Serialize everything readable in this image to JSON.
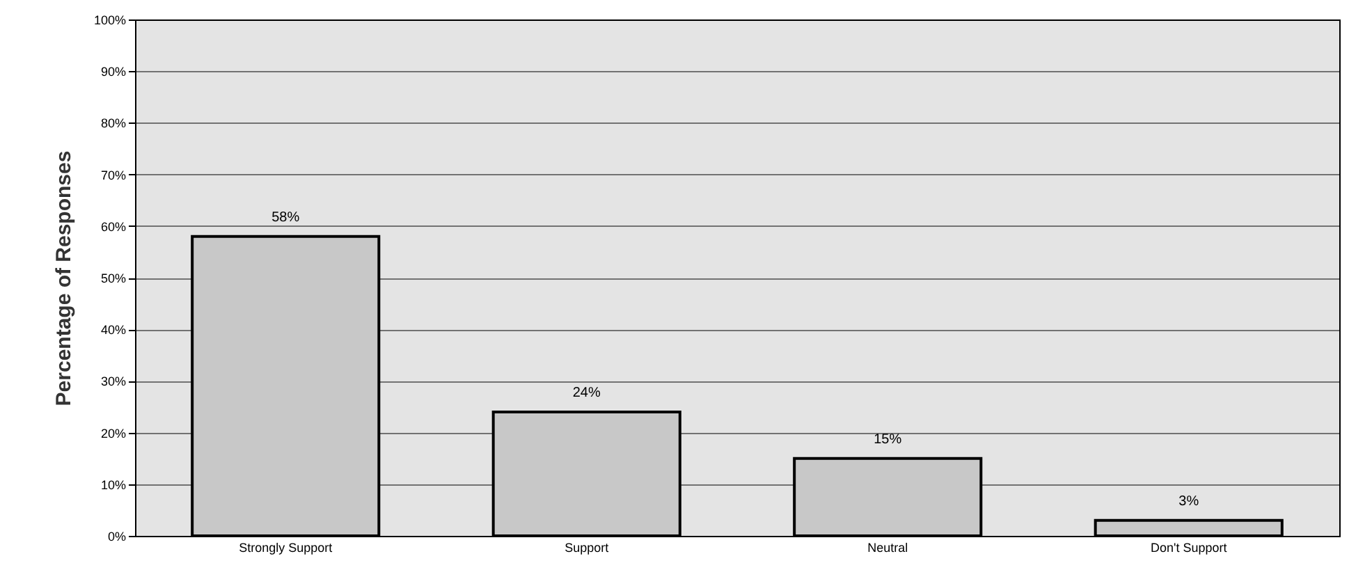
{
  "chart_data": {
    "type": "bar",
    "ylabel": "Percentage of Responses",
    "categories": [
      "Strongly Support",
      "Support",
      "Neutral",
      "Don't Support"
    ],
    "values": [
      58,
      24,
      15,
      3
    ],
    "value_labels": [
      "58%",
      "24%",
      "15%",
      "3%"
    ],
    "color": "#c8c8c8",
    "ylim": [
      0,
      100
    ],
    "yticks": [
      {
        "value": 0,
        "label": "0%"
      },
      {
        "value": 10,
        "label": "10%"
      },
      {
        "value": 20,
        "label": "20%"
      },
      {
        "value": 30,
        "label": "30%"
      },
      {
        "value": 40,
        "label": "40%"
      },
      {
        "value": 50,
        "label": "50%"
      },
      {
        "value": 60,
        "label": "60%"
      },
      {
        "value": 70,
        "label": "70%"
      },
      {
        "value": 80,
        "label": "80%"
      },
      {
        "value": 90,
        "label": "90%"
      },
      {
        "value": 100,
        "label": "100%"
      }
    ],
    "grid": true
  }
}
